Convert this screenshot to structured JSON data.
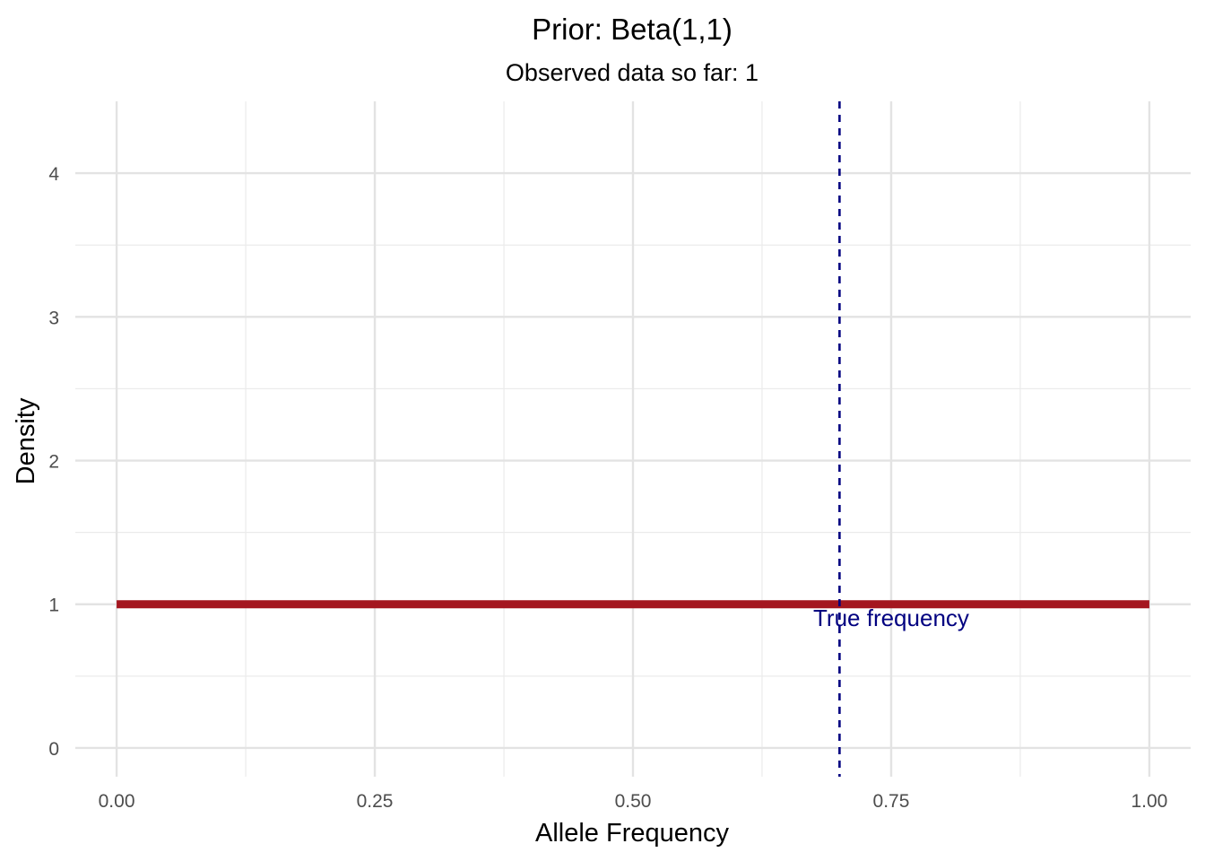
{
  "chart_data": {
    "type": "line",
    "title": "Prior: Beta(1,1)",
    "subtitle": "Observed data so far: 1",
    "xlabel": "Allele Frequency",
    "ylabel": "Density",
    "xlim": [
      -0.04,
      1.04
    ],
    "ylim": [
      -0.2,
      4.5
    ],
    "x_ticks": [
      {
        "value": 0.0,
        "label": "0.00"
      },
      {
        "value": 0.25,
        "label": "0.25"
      },
      {
        "value": 0.5,
        "label": "0.50"
      },
      {
        "value": 0.75,
        "label": "0.75"
      },
      {
        "value": 1.0,
        "label": "1.00"
      }
    ],
    "x_minor_ticks": [
      0.125,
      0.375,
      0.625,
      0.875
    ],
    "y_ticks": [
      {
        "value": 0,
        "label": "0"
      },
      {
        "value": 1,
        "label": "1"
      },
      {
        "value": 2,
        "label": "2"
      },
      {
        "value": 3,
        "label": "3"
      },
      {
        "value": 4,
        "label": "4"
      }
    ],
    "y_minor_ticks": [
      0.5,
      1.5,
      2.5,
      3.5
    ],
    "grid": true,
    "series": [
      {
        "x": [
          0.0,
          0.25,
          0.5,
          0.75,
          1.0
        ],
        "y": [
          1,
          1,
          1,
          1,
          1
        ],
        "color": "#a4161f"
      }
    ],
    "reference_line": {
      "x": 0.7,
      "color": "#000080",
      "style": "dashed"
    },
    "annotations": [
      {
        "text": "True frequency",
        "x": 0.75,
        "y": 0.89,
        "color": "#000080"
      }
    ]
  }
}
